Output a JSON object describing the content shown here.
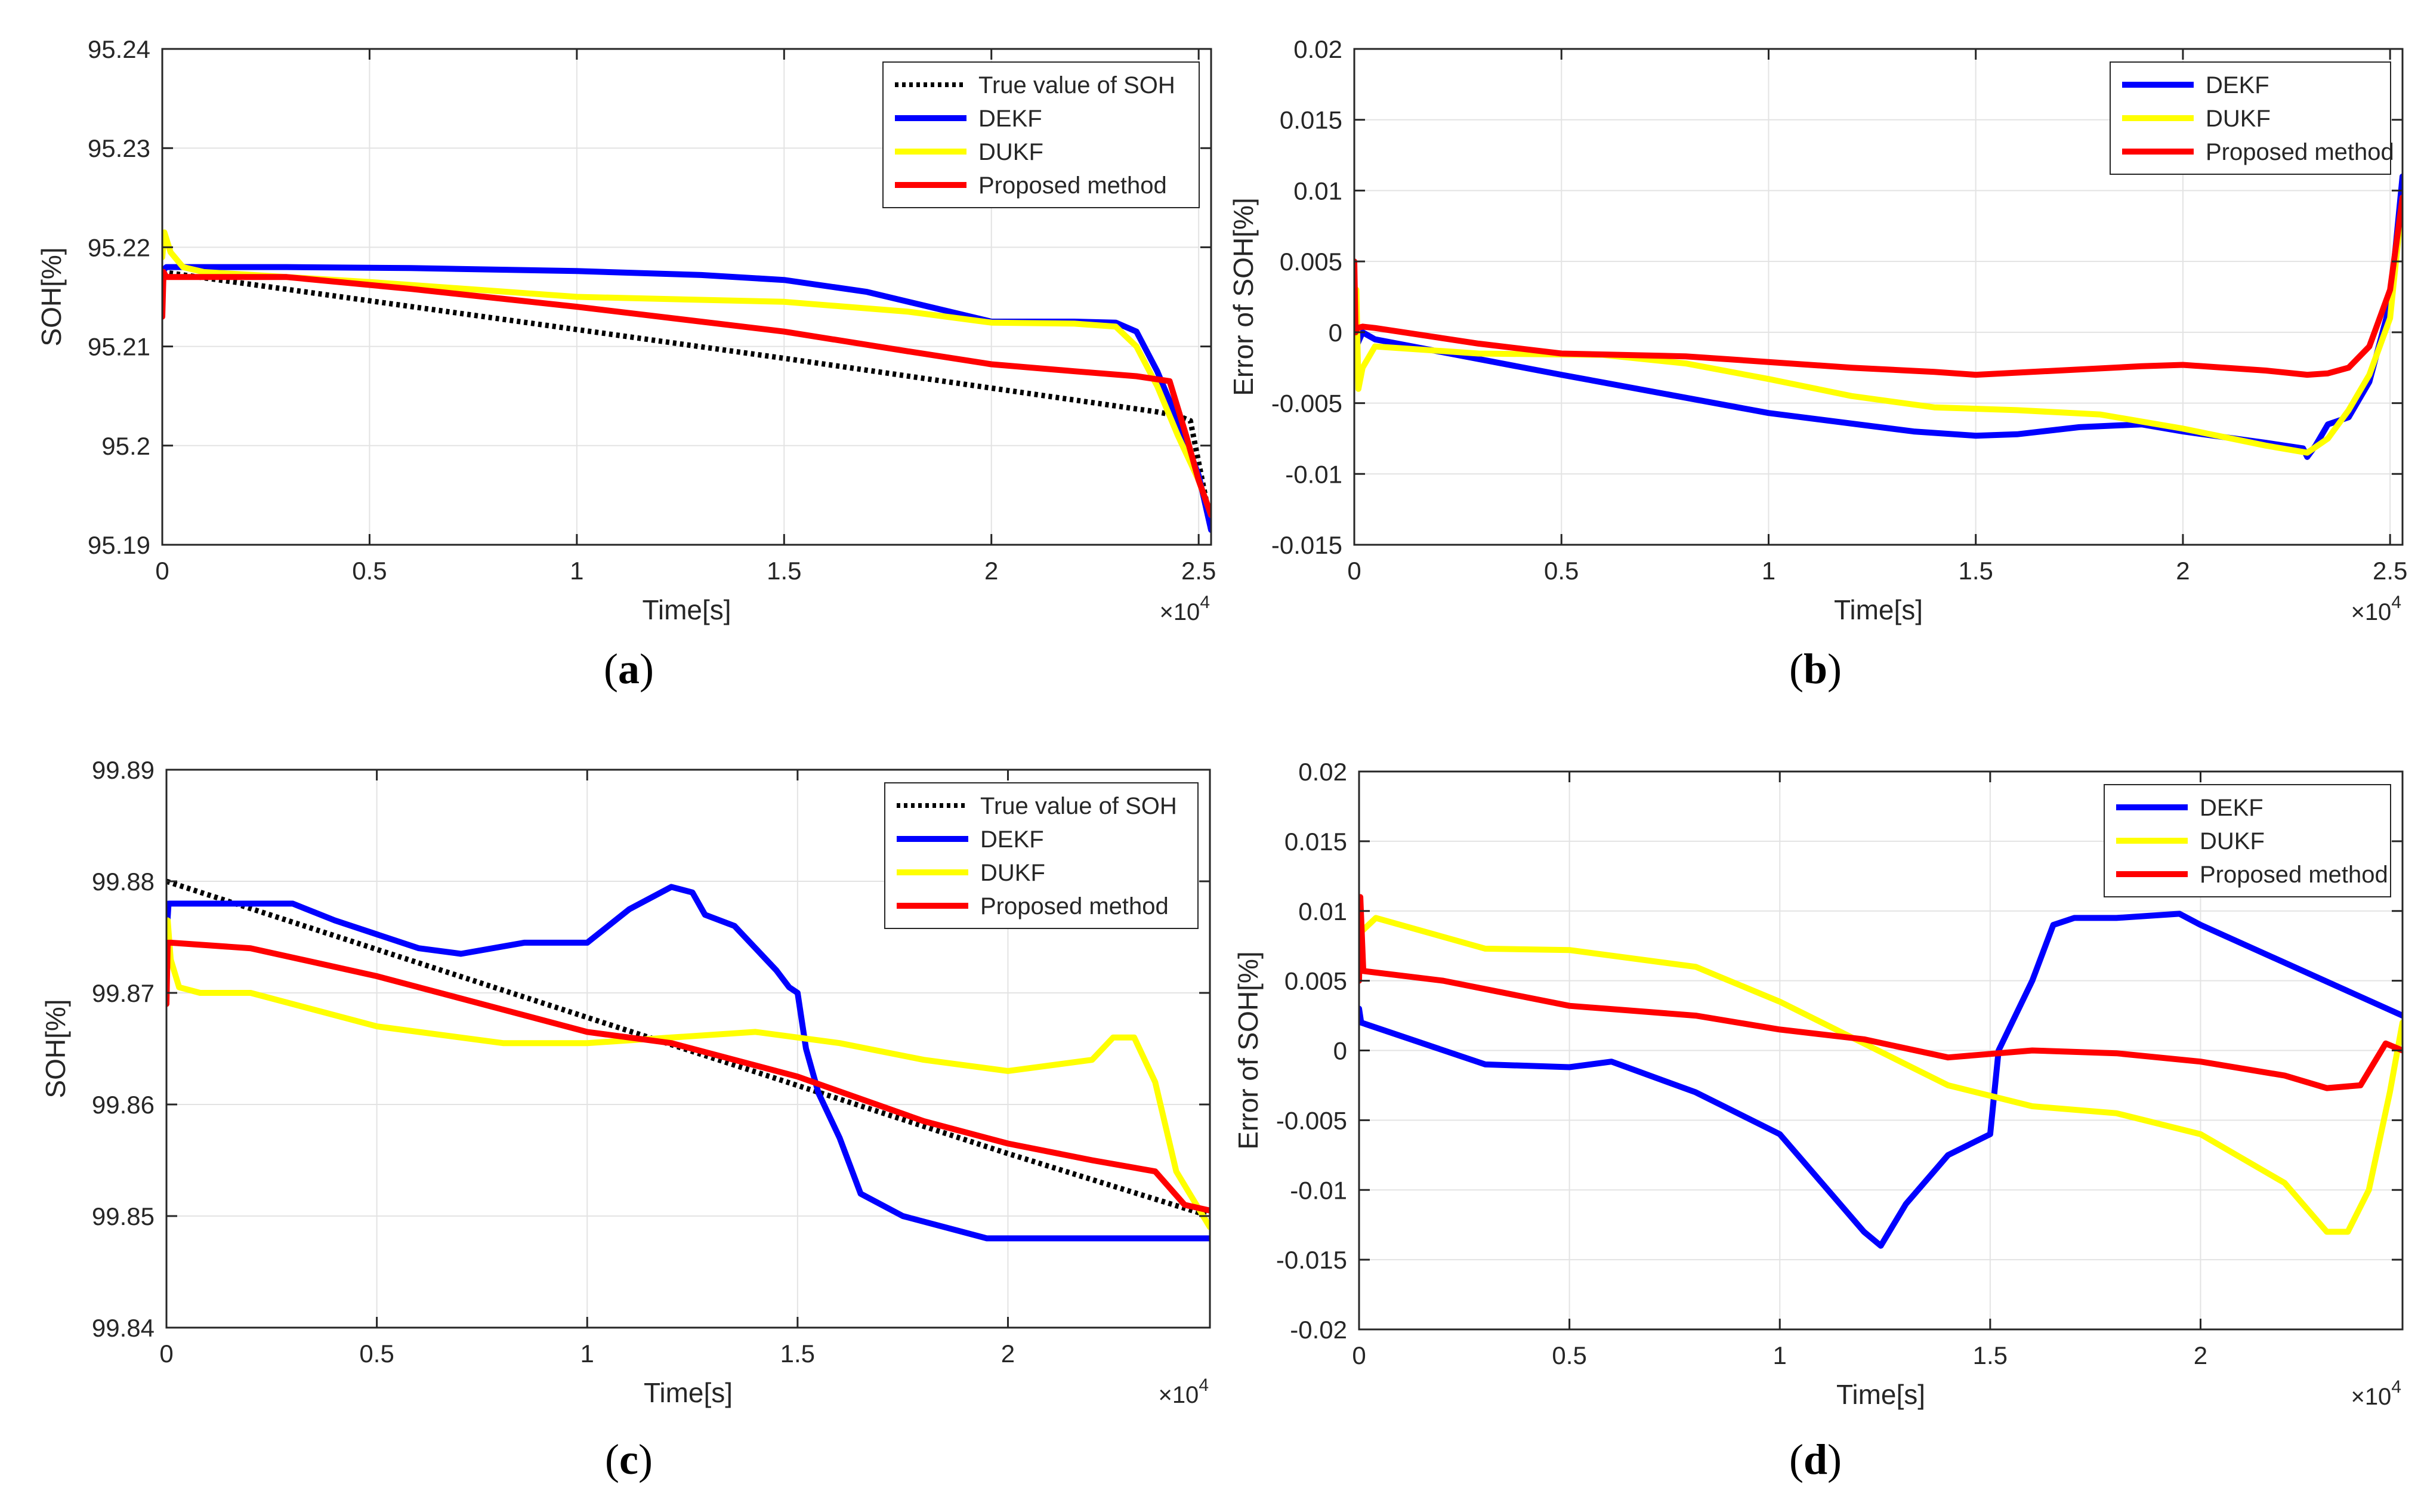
{
  "figure": {
    "colors": {
      "true_soh": "#000000",
      "dekf": "#0000ff",
      "dukf": "#ffff00",
      "proposed": "#ff0000",
      "grid": "#e3e3e3",
      "axis": "#262626"
    }
  },
  "chart_data": [
    {
      "panel": "a",
      "caption": "(a)",
      "type": "line",
      "xlabel": "Time[s]",
      "ylabel": "SOH[%]",
      "x_multiplier": "×10",
      "x_exponent": "4",
      "xlim": [
        0,
        2.53
      ],
      "ylim": [
        95.19,
        95.24
      ],
      "xticks": [
        0,
        0.5,
        1,
        1.5,
        2,
        2.5
      ],
      "xtick_labels": [
        "0",
        "0.5",
        "1",
        "1.5",
        "2",
        "2.5"
      ],
      "yticks": [
        95.19,
        95.2,
        95.21,
        95.22,
        95.23,
        95.24
      ],
      "ytick_labels": [
        "95.19",
        "95.2",
        "95.21",
        "95.22",
        "95.23",
        "95.24"
      ],
      "grid": true,
      "legend": "top-right",
      "series": [
        {
          "name": "True value of SOH",
          "key": "true_soh",
          "style": "dotted",
          "x": [
            0,
            0.5,
            1,
            1.5,
            2,
            2.4,
            2.45,
            2.48,
            2.53
          ],
          "y": [
            95.2175,
            95.2146,
            95.2117,
            95.2088,
            95.2058,
            95.2034,
            95.203,
            95.2025,
            95.192
          ]
        },
        {
          "name": "DEKF",
          "key": "dekf",
          "style": "solid",
          "x": [
            0,
            0.005,
            0.01,
            0.3,
            0.6,
            1.0,
            1.3,
            1.5,
            1.7,
            1.9,
            2.0,
            2.2,
            2.3,
            2.35,
            2.4,
            2.45,
            2.5,
            2.53
          ],
          "y": [
            95.217,
            95.2178,
            95.218,
            95.218,
            95.2179,
            95.2176,
            95.2172,
            95.2167,
            95.2155,
            95.2135,
            95.2125,
            95.2125,
            95.2124,
            95.2115,
            95.2075,
            95.2025,
            95.197,
            95.1915
          ]
        },
        {
          "name": "DUKF",
          "key": "dukf",
          "style": "solid",
          "x": [
            0,
            0.005,
            0.02,
            0.05,
            0.1,
            0.5,
            1.0,
            1.5,
            1.8,
            2.0,
            2.2,
            2.3,
            2.35,
            2.4,
            2.45,
            2.5,
            2.53
          ],
          "y": [
            95.219,
            95.2215,
            95.2195,
            95.218,
            95.2175,
            95.2165,
            95.215,
            95.2145,
            95.2135,
            95.2124,
            95.2123,
            95.212,
            95.21,
            95.206,
            95.201,
            95.1965,
            95.193
          ]
        },
        {
          "name": "Proposed method",
          "key": "proposed",
          "style": "solid",
          "x": [
            0,
            0.003,
            0.01,
            0.3,
            0.6,
            1.0,
            1.5,
            1.8,
            2.0,
            2.2,
            2.35,
            2.43,
            2.47,
            2.5,
            2.53
          ],
          "y": [
            95.213,
            95.2175,
            95.217,
            95.217,
            95.2158,
            95.214,
            95.2115,
            95.2095,
            95.2082,
            95.2075,
            95.207,
            95.2065,
            95.201,
            95.1965,
            95.193
          ]
        }
      ]
    },
    {
      "panel": "b",
      "caption": "(b)",
      "type": "line",
      "xlabel": "Time[s]",
      "ylabel": "Error of SOH[%]",
      "x_multiplier": "×10",
      "x_exponent": "4",
      "xlim": [
        0,
        2.53
      ],
      "ylim": [
        -0.015,
        0.02
      ],
      "xticks": [
        0,
        0.5,
        1,
        1.5,
        2,
        2.5
      ],
      "xtick_labels": [
        "0",
        "0.5",
        "1",
        "1.5",
        "2",
        "2.5"
      ],
      "yticks": [
        -0.015,
        -0.01,
        -0.005,
        0,
        0.005,
        0.01,
        0.015,
        0.02
      ],
      "ytick_labels": [
        "-0.015",
        "-0.01",
        "-0.005",
        "0",
        "0.005",
        "0.01",
        "0.015",
        "0.02"
      ],
      "grid": true,
      "legend": "top-right",
      "series": [
        {
          "name": "DEKF",
          "key": "dekf",
          "style": "solid",
          "x": [
            0,
            0.005,
            0.02,
            0.05,
            0.5,
            1.0,
            1.35,
            1.5,
            1.6,
            1.75,
            1.9,
            2.0,
            2.2,
            2.29,
            2.3,
            2.32,
            2.35,
            2.4,
            2.45,
            2.5,
            2.53
          ],
          "y": [
            0.0005,
            -0.001,
            0,
            -0.0005,
            -0.003,
            -0.0057,
            -0.007,
            -0.0073,
            -0.0072,
            -0.0067,
            -0.0065,
            -0.007,
            -0.0078,
            -0.0082,
            -0.0088,
            -0.008,
            -0.0065,
            -0.006,
            -0.0035,
            0.002,
            0.011
          ]
        },
        {
          "name": "DUKF",
          "key": "dukf",
          "style": "solid",
          "x": [
            0,
            0.005,
            0.01,
            0.02,
            0.05,
            0.3,
            0.6,
            0.8,
            1.0,
            1.2,
            1.4,
            1.6,
            1.8,
            2.0,
            2.2,
            2.3,
            2.35,
            2.4,
            2.45,
            2.5,
            2.53
          ],
          "y": [
            0.0005,
            0.003,
            -0.004,
            -0.0025,
            -0.001,
            -0.0015,
            -0.0016,
            -0.0022,
            -0.0033,
            -0.0045,
            -0.0053,
            -0.0055,
            -0.0058,
            -0.0068,
            -0.008,
            -0.0085,
            -0.0075,
            -0.0055,
            -0.003,
            0.001,
            0.0095
          ]
        },
        {
          "name": "Proposed method",
          "key": "proposed",
          "style": "solid",
          "x": [
            0,
            0.003,
            0.008,
            0.02,
            0.05,
            0.3,
            0.5,
            0.8,
            1.0,
            1.2,
            1.4,
            1.5,
            1.7,
            1.9,
            2.0,
            2.2,
            2.3,
            2.35,
            2.4,
            2.45,
            2.5,
            2.53
          ],
          "y": [
            0.005,
            0,
            0.0003,
            0.0004,
            0.0003,
            -0.0008,
            -0.0015,
            -0.0017,
            -0.0021,
            -0.0025,
            -0.0028,
            -0.003,
            -0.0027,
            -0.0024,
            -0.0023,
            -0.0027,
            -0.003,
            -0.0029,
            -0.0025,
            -0.001,
            0.003,
            0.0095
          ]
        }
      ]
    },
    {
      "panel": "c",
      "caption": "(c)",
      "type": "line",
      "xlabel": "Time[s]",
      "ylabel": "SOH[%]",
      "x_multiplier": "×10",
      "x_exponent": "4",
      "xlim": [
        0,
        2.48
      ],
      "ylim": [
        99.84,
        99.89
      ],
      "xticks": [
        0,
        0.5,
        1,
        1.5,
        2
      ],
      "xtick_labels": [
        "0",
        "0.5",
        "1",
        "1.5",
        "2"
      ],
      "yticks": [
        99.84,
        99.85,
        99.86,
        99.87,
        99.88,
        99.89
      ],
      "ytick_labels": [
        "99.84",
        "99.85",
        "99.86",
        "99.87",
        "99.88",
        "99.89"
      ],
      "grid": true,
      "legend": "top-right",
      "series": [
        {
          "name": "True value of SOH",
          "key": "true_soh",
          "style": "dotted",
          "x": [
            0,
            0.5,
            1.0,
            1.5,
            2.0,
            2.48
          ],
          "y": [
            99.88,
            99.8739,
            99.8678,
            99.8617,
            99.8556,
            99.85
          ]
        },
        {
          "name": "DEKF",
          "key": "dekf",
          "style": "solid",
          "x": [
            0,
            0.005,
            0.3,
            0.4,
            0.6,
            0.7,
            0.85,
            1.0,
            1.1,
            1.2,
            1.25,
            1.28,
            1.35,
            1.45,
            1.48,
            1.5,
            1.52,
            1.55,
            1.6,
            1.65,
            1.75,
            1.85,
            1.95,
            2.0,
            2.48
          ],
          "y": [
            99.875,
            99.878,
            99.878,
            99.8765,
            99.874,
            99.8735,
            99.8745,
            99.8745,
            99.8775,
            99.8795,
            99.879,
            99.877,
            99.876,
            99.872,
            99.8705,
            99.87,
            99.865,
            99.861,
            99.857,
            99.852,
            99.85,
            99.849,
            99.848,
            99.848,
            99.848
          ]
        },
        {
          "name": "DUKF",
          "key": "dukf",
          "style": "solid",
          "x": [
            0,
            0.003,
            0.01,
            0.03,
            0.08,
            0.2,
            0.5,
            0.8,
            1.0,
            1.2,
            1.4,
            1.6,
            1.8,
            2.0,
            2.2,
            2.25,
            2.3,
            2.35,
            2.4,
            2.48
          ],
          "y": [
            99.872,
            99.8765,
            99.873,
            99.8705,
            99.87,
            99.87,
            99.867,
            99.8655,
            99.8655,
            99.866,
            99.8665,
            99.8655,
            99.864,
            99.863,
            99.864,
            99.866,
            99.866,
            99.862,
            99.854,
            99.849
          ]
        },
        {
          "name": "Proposed method",
          "key": "proposed",
          "style": "solid",
          "x": [
            0,
            0.003,
            0.01,
            0.2,
            0.5,
            0.8,
            1.0,
            1.2,
            1.5,
            1.8,
            2.0,
            2.2,
            2.35,
            2.42,
            2.48
          ],
          "y": [
            99.869,
            99.8745,
            99.8745,
            99.874,
            99.8715,
            99.8685,
            99.8665,
            99.8655,
            99.8625,
            99.8585,
            99.8565,
            99.855,
            99.854,
            99.851,
            99.8505
          ]
        }
      ]
    },
    {
      "panel": "d",
      "caption": "(d)",
      "type": "line",
      "xlabel": "Time[s]",
      "ylabel": "Error of SOH[%]",
      "x_multiplier": "×10",
      "x_exponent": "4",
      "xlim": [
        0,
        2.48
      ],
      "ylim": [
        -0.02,
        0.02
      ],
      "xticks": [
        0,
        0.5,
        1,
        1.5,
        2
      ],
      "xtick_labels": [
        "0",
        "0.5",
        "1",
        "1.5",
        "2"
      ],
      "yticks": [
        -0.02,
        -0.015,
        -0.01,
        -0.005,
        0,
        0.005,
        0.01,
        0.015,
        0.02
      ],
      "ytick_labels": [
        "-0.02",
        "-0.015",
        "-0.01",
        "-0.005",
        "0",
        "0.005",
        "0.01",
        "0.015",
        "0.02"
      ],
      "grid": true,
      "legend": "top-right",
      "series": [
        {
          "name": "DEKF",
          "key": "dekf",
          "style": "solid",
          "x": [
            0,
            0.005,
            0.3,
            0.5,
            0.6,
            0.8,
            1.0,
            1.1,
            1.2,
            1.24,
            1.3,
            1.4,
            1.5,
            1.52,
            1.6,
            1.65,
            1.7,
            1.8,
            1.95,
            2.0,
            2.48
          ],
          "y": [
            0.003,
            0.002,
            -0.001,
            -0.0012,
            -0.0008,
            -0.003,
            -0.006,
            -0.0095,
            -0.013,
            -0.014,
            -0.011,
            -0.0075,
            -0.006,
            0,
            0.005,
            0.009,
            0.0095,
            0.0095,
            0.0098,
            0.009,
            0.0025
          ]
        },
        {
          "name": "DUKF",
          "key": "dukf",
          "style": "solid",
          "x": [
            0,
            0.005,
            0.04,
            0.3,
            0.5,
            0.8,
            1.0,
            1.2,
            1.4,
            1.6,
            1.8,
            2.0,
            2.2,
            2.3,
            2.35,
            2.4,
            2.45,
            2.48
          ],
          "y": [
            0.006,
            0.0085,
            0.0095,
            0.0073,
            0.0072,
            0.006,
            0.0035,
            0.0005,
            -0.0025,
            -0.004,
            -0.0045,
            -0.006,
            -0.0095,
            -0.013,
            -0.013,
            -0.01,
            -0.003,
            0.002
          ]
        },
        {
          "name": "Proposed method",
          "key": "proposed",
          "style": "solid",
          "x": [
            0,
            0.003,
            0.01,
            0.2,
            0.5,
            0.8,
            1.0,
            1.2,
            1.4,
            1.6,
            1.8,
            2.0,
            2.2,
            2.3,
            2.38,
            2.44,
            2.48
          ],
          "y": [
            0.005,
            0.011,
            0.0057,
            0.005,
            0.0032,
            0.0025,
            0.0015,
            0.0008,
            -0.0005,
            0,
            -0.0002,
            -0.0008,
            -0.0018,
            -0.0027,
            -0.0025,
            0.0005,
            0
          ]
        }
      ]
    }
  ]
}
